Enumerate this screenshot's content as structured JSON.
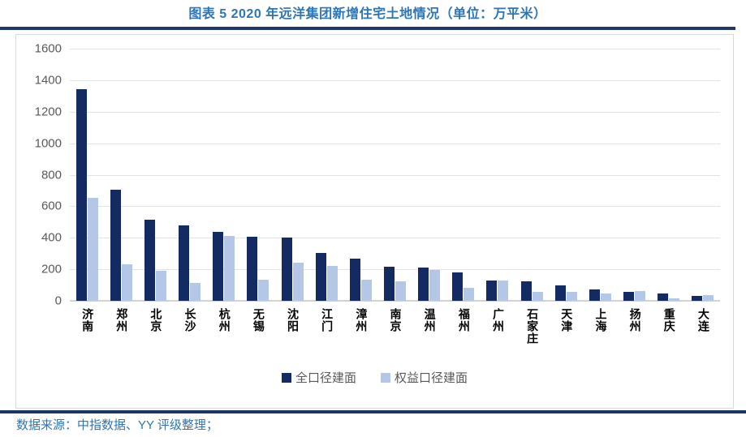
{
  "title": "图表 5 2020 年远洋集团新增住宅土地情况（单位：万平米）",
  "footer": {
    "source_label": "数据来源：中指数据、YY 评级整理；"
  },
  "colors": {
    "title_blue": "#2e75b6",
    "rule_navy": "#1f3864",
    "bar_dark": "#142a63",
    "bar_light": "#b4c7e7",
    "gridline": "#e3e3e3",
    "axis_text": "#595959"
  },
  "chart_data": {
    "type": "bar",
    "title": "2020 年远洋集团新增住宅土地情况",
    "unit": "万平米",
    "categories": [
      "济南",
      "郑州",
      "北京",
      "长沙",
      "杭州",
      "无锡",
      "沈阳",
      "江门",
      "漳州",
      "南京",
      "温州",
      "福州",
      "广州",
      "石家庄",
      "天津",
      "上海",
      "扬州",
      "重庆",
      "大连"
    ],
    "series": [
      {
        "name": "全口径建面",
        "color": "#142a63",
        "values": [
          1345,
          705,
          515,
          480,
          435,
          405,
          400,
          306,
          265,
          214,
          209,
          178,
          128,
          126,
          97,
          70,
          58,
          48,
          33
        ]
      },
      {
        "name": "权益口径建面",
        "color": "#b4c7e7",
        "values": [
          655,
          230,
          190,
          115,
          413,
          134,
          240,
          220,
          136,
          124,
          197,
          80,
          130,
          58,
          55,
          45,
          62,
          15,
          36
        ]
      }
    ],
    "xlabel": "",
    "ylabel": "",
    "ylim": [
      0,
      1600
    ],
    "yticks": [
      0,
      200,
      400,
      600,
      800,
      1000,
      1200,
      1400,
      1600
    ],
    "grid": true,
    "legend_position": "bottom"
  }
}
